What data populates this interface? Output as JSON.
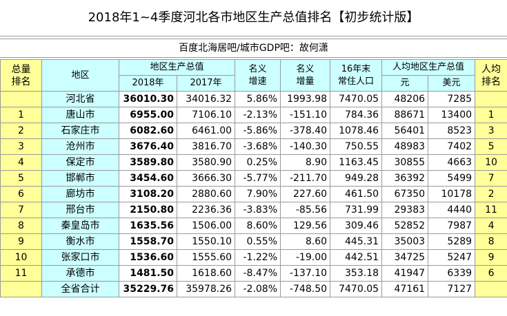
{
  "title": "2018年1~4季度河北各市地区生产总值排名【初步统计版】",
  "subtitle": "百度北海居吧/城市GDP吧：故何潇",
  "header": {
    "rank": [
      "总量",
      "排名"
    ],
    "region": "地区",
    "gdp": "地区生产总值",
    "growth": [
      "名义",
      "增速"
    ],
    "increment": [
      "名义",
      "增量"
    ],
    "population": [
      "16年末",
      "常住人口"
    ],
    "per_capita": "人均地区生产总值",
    "per_rank": [
      "人均",
      "排名"
    ],
    "gdp_2018": "2018年",
    "gdp_2017": "2017年",
    "yuan": "元",
    "usd": "美元"
  },
  "table": {
    "rows": [
      [
        null,
        "河北省",
        "36010.30",
        "34016.32",
        "5.86%",
        "1993.98",
        "7470.05",
        "48206",
        "7285",
        null
      ],
      [
        "1",
        "唐山市",
        "6955.00",
        "7106.10",
        "-2.13%",
        "-151.10",
        "784.36",
        "88671",
        "13400",
        "1"
      ],
      [
        "2",
        "石家庄市",
        "6082.60",
        "6461.00",
        "-5.86%",
        "-378.40",
        "1078.46",
        "56401",
        "8523",
        "3"
      ],
      [
        "3",
        "沧州市",
        "3676.40",
        "3816.70",
        "-3.68%",
        "-140.30",
        "750.55",
        "48983",
        "7402",
        "5"
      ],
      [
        "4",
        "保定市",
        "3589.80",
        "3580.90",
        "0.25%",
        "8.90",
        "1163.45",
        "30855",
        "4663",
        "10"
      ],
      [
        "5",
        "邯郸市",
        "3454.60",
        "3666.30",
        "-5.77%",
        "-211.70",
        "949.28",
        "36392",
        "5499",
        "7"
      ],
      [
        "6",
        "廊坊市",
        "3108.20",
        "2880.60",
        "7.90%",
        "227.60",
        "461.50",
        "67350",
        "10178",
        "2"
      ],
      [
        "7",
        "邢台市",
        "2150.80",
        "2236.36",
        "-3.83%",
        "-85.56",
        "731.99",
        "29383",
        "4440",
        "11"
      ],
      [
        "8",
        "秦皇岛市",
        "1635.56",
        "1506.00",
        "8.60%",
        "129.56",
        "309.46",
        "52852",
        "7987",
        "4"
      ],
      [
        "9",
        "衡水市",
        "1558.70",
        "1550.10",
        "0.55%",
        "8.60",
        "445.31",
        "35003",
        "5289",
        "8"
      ],
      [
        "10",
        "张家口市",
        "1536.60",
        "1555.60",
        "-1.22%",
        "-19.00",
        "442.51",
        "34725",
        "5247",
        "9"
      ],
      [
        "11",
        "承德市",
        "1481.50",
        "1618.60",
        "-8.47%",
        "-137.10",
        "353.18",
        "41947",
        "6339",
        "6"
      ],
      [
        null,
        "全省合计",
        "35229.76",
        "35978.26",
        "-2.08%",
        "-748.50",
        "7470.05",
        "47161",
        "7127",
        null
      ]
    ]
  }
}
